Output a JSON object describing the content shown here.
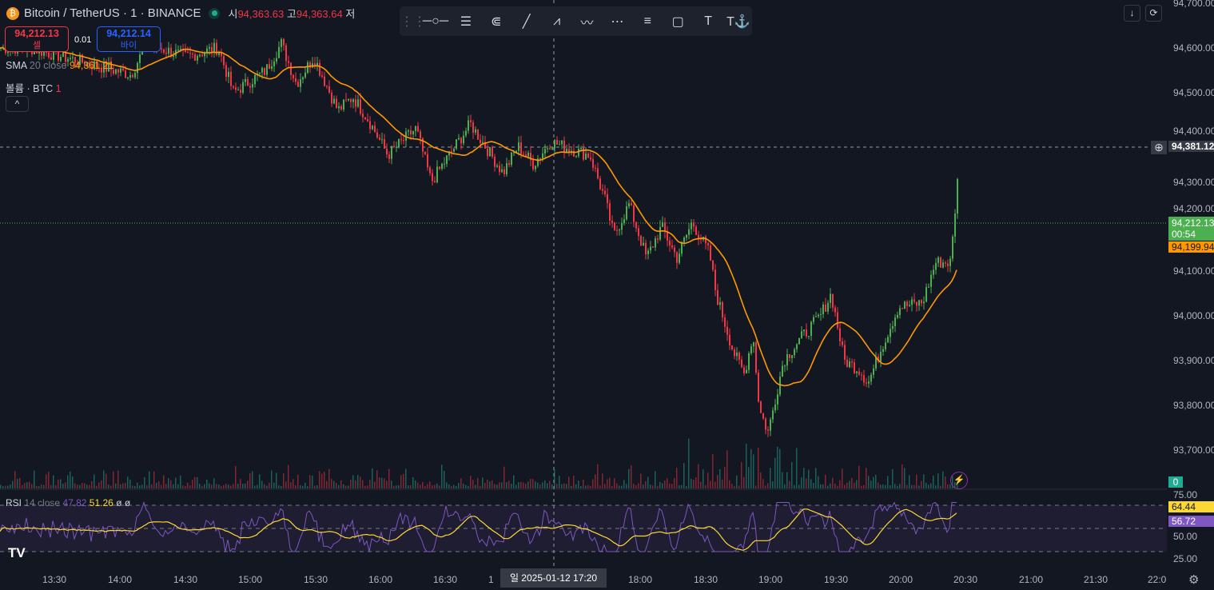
{
  "header": {
    "symbol": "Bitcoin / TetherUS · 1 · BINANCE",
    "open_label": "시",
    "open": "94,363.63",
    "high_label": "고",
    "high": "94,363.64",
    "low_label": "저"
  },
  "trade": {
    "sell_price": "94,212.13",
    "sell_label": "셀",
    "spread": "0.01",
    "buy_price": "94,212.14",
    "buy_label": "바이"
  },
  "indicators": {
    "sma_name": "SMA",
    "sma_params": "20 close",
    "sma_value": "94,361.21",
    "volume_name": "볼륨 · BTC",
    "volume_value": "1",
    "collapse": "^"
  },
  "rsi": {
    "name": "RSI",
    "params": "14 close",
    "value": "47.82",
    "ma_value": "51.26",
    "extra1": "ø",
    "extra2": "ø",
    "tag_ma": "64.44",
    "tag_rsi": "56.72",
    "levels": [
      "75.00",
      "50.00",
      "25.00"
    ]
  },
  "toolbar": {
    "icons": [
      "horizontal-ray-icon",
      "parallel-channel-icon",
      "fib-fan-icon",
      "trend-line-icon",
      "abcd-pattern-icon",
      "elliott-wave-icon",
      "date-range-icon",
      "price-range-icon",
      "rectangle-icon",
      "text-icon",
      "anchored-text-icon"
    ]
  },
  "price_axis": {
    "labels": [
      "94,700.00",
      "94,600.00",
      "94,500.00",
      "94,400.00",
      "94,300.00",
      "94,200.00",
      "94,100.00",
      "94,000.00",
      "93,900.00",
      "93,800.00",
      "93,700.00"
    ],
    "crosshair_price": "94,381.12",
    "last_price": "94,212.13",
    "countdown": "00:54",
    "sma_tag": "94,199.94",
    "volume_tag": "0"
  },
  "time_axis": {
    "labels": [
      "13:30",
      "14:00",
      "14:30",
      "15:00",
      "15:30",
      "16:00",
      "16:30",
      "1",
      "18:00",
      "18:30",
      "19:00",
      "19:30",
      "20:00",
      "20:30",
      "21:00",
      "21:30",
      "22:0"
    ],
    "crosshair_time": "일 2025-01-12   17:20"
  },
  "colors": {
    "up": "#4caf50",
    "down": "#f23645",
    "sma": "#ff9800",
    "rsi": "#7e57c2",
    "rsi_ma": "#fdd835",
    "bg": "#131722"
  },
  "chart_data": {
    "type": "candlestick",
    "price_range": [
      93650,
      94700
    ],
    "close_path": [
      [
        "13:18",
        94600
      ],
      [
        "14:05",
        94540
      ],
      [
        "14:12",
        94610
      ],
      [
        "14:30",
        94580
      ],
      [
        "14:45",
        94600
      ],
      [
        "14:52",
        94500
      ],
      [
        "15:07",
        94550
      ],
      [
        "15:14",
        94610
      ],
      [
        "15:21",
        94520
      ],
      [
        "15:29",
        94580
      ],
      [
        "15:40",
        94460
      ],
      [
        "15:47",
        94490
      ],
      [
        "15:54",
        94440
      ],
      [
        "16:03",
        94360
      ],
      [
        "16:16",
        94420
      ],
      [
        "16:23",
        94300
      ],
      [
        "16:34",
        94380
      ],
      [
        "16:41",
        94430
      ],
      [
        "16:56",
        94320
      ],
      [
        "17:03",
        94380
      ],
      [
        "17:10",
        94340
      ],
      [
        "17:18",
        94390
      ],
      [
        "17:29",
        94370
      ],
      [
        "17:36",
        94360
      ],
      [
        "17:43",
        94260
      ],
      [
        "17:47",
        94180
      ],
      [
        "17:54",
        94250
      ],
      [
        "18:02",
        94130
      ],
      [
        "18:09",
        94200
      ],
      [
        "18:16",
        94130
      ],
      [
        "18:23",
        94210
      ],
      [
        "18:31",
        94140
      ],
      [
        "18:34",
        94050
      ],
      [
        "18:42",
        93920
      ],
      [
        "18:47",
        93870
      ],
      [
        "18:51",
        93960
      ],
      [
        "18:54",
        93790
      ],
      [
        "18:58",
        93740
      ],
      [
        "19:05",
        93900
      ],
      [
        "19:13",
        93950
      ],
      [
        "19:22",
        94000
      ],
      [
        "19:27",
        94050
      ],
      [
        "19:33",
        93900
      ],
      [
        "19:40",
        93880
      ],
      [
        "19:44",
        93850
      ],
      [
        "19:51",
        93940
      ],
      [
        "19:58",
        94020
      ],
      [
        "20:09",
        94030
      ],
      [
        "20:15",
        94120
      ],
      [
        "20:22",
        94120
      ],
      [
        "20:25",
        94300
      ],
      [
        "20:29",
        94270
      ],
      [
        "20:33",
        94210
      ]
    ]
  }
}
